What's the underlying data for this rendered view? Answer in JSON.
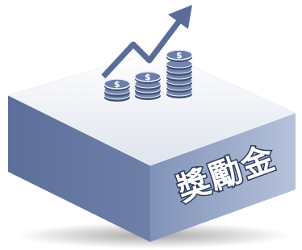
{
  "label": "獎勵金"
}
